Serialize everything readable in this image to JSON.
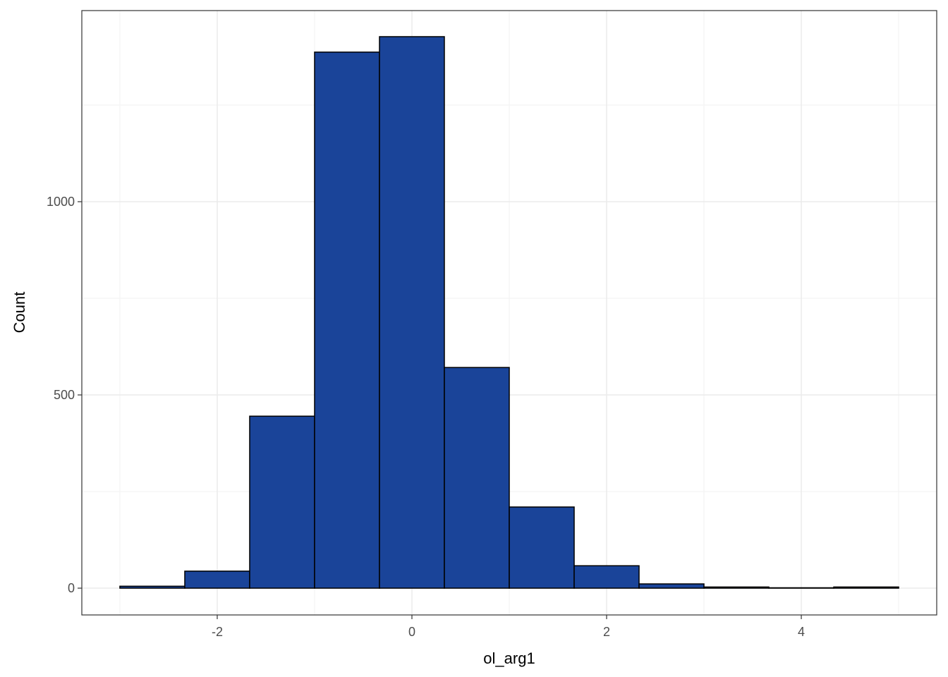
{
  "chart_data": {
    "type": "histogram",
    "x_label": "ol_arg1",
    "y_label": "Count",
    "bins": [
      -3,
      -2.3333,
      -1.6667,
      -1,
      -0.3333,
      0.3333,
      1,
      1.6667,
      2.3333,
      3,
      3.6667,
      4.3333,
      5
    ],
    "values": [
      5,
      44,
      445,
      1387,
      1427,
      571,
      210,
      58,
      11,
      3,
      1,
      3
    ],
    "color": "#1a4499",
    "edge_color": "#000000",
    "xlim": [
      -3.391,
      5.391
    ],
    "ylim": [
      -69.3,
      1494.5
    ],
    "xticks": [
      -2,
      0,
      2,
      4
    ],
    "yticks": [
      0,
      500,
      1000
    ],
    "minor_xticks": [
      -3,
      -1,
      1,
      3,
      5
    ],
    "minor_yticks": [
      250,
      750,
      1250
    ],
    "grid": true
  }
}
